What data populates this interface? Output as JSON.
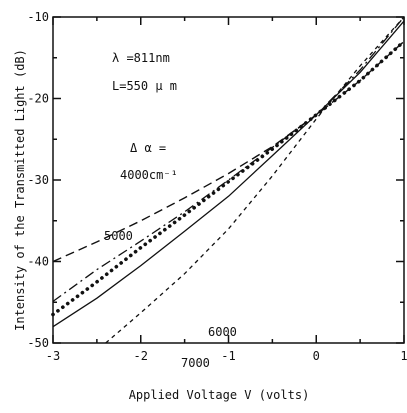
{
  "chart_data": {
    "type": "line",
    "xlabel": "Applied Voltage  V (volts)",
    "ylabel": "Intensity of the Transmitted Light  (dB)",
    "xlim": [
      -3,
      1
    ],
    "ylim": [
      -50,
      -10
    ],
    "xticks": [
      -3,
      -2,
      -1,
      0,
      1
    ],
    "xtick_labels": [
      "-3",
      "-2",
      "-1",
      "0",
      "1"
    ],
    "yticks": [
      -50,
      -40,
      -30,
      -20,
      -10
    ],
    "ytick_labels": [
      "-50",
      "-40",
      "-30",
      "-20",
      "-10"
    ],
    "grid": false,
    "legend": "none",
    "annotations": {
      "lambda": "λ =811nm",
      "length": "L=550 μ m",
      "delta_alpha": "Δ α =",
      "delta_alpha_value": "4000cm⁻¹"
    },
    "series": [
      {
        "name": "5000",
        "style": "dashed",
        "x": [
          -3,
          -2.5,
          -2,
          -1.5,
          -1,
          -0.5,
          0,
          0.5,
          1
        ],
        "y": [
          -40.0,
          -37.6,
          -35.0,
          -32.2,
          -29.2,
          -25.9,
          -22.0,
          -17.8,
          -13.0
        ]
      },
      {
        "name": "4000cm⁻¹",
        "style": "dotted-bold",
        "x": [
          -3,
          -2.5,
          -2,
          -1.5,
          -1,
          -0.5,
          0,
          0.5,
          1
        ],
        "y": [
          -46.5,
          -42.5,
          -38.3,
          -34.3,
          -30.2,
          -26.2,
          -22.0,
          -17.8,
          -13.0
        ]
      },
      {
        "name": "",
        "style": "dash-dot",
        "x": [
          -3,
          -2.5,
          -2,
          -1.5,
          -1,
          -0.5,
          0,
          0.5,
          1
        ],
        "y": [
          -44.9,
          -41.0,
          -37.5,
          -33.9,
          -30.0,
          -26.0,
          -22.0,
          -16.5,
          -10.0
        ]
      },
      {
        "name": "6000",
        "style": "solid",
        "x": [
          -3,
          -2.5,
          -2,
          -1.5,
          -1,
          -0.5,
          0,
          0.5,
          1
        ],
        "y": [
          -48.0,
          -44.5,
          -40.5,
          -36.3,
          -32.0,
          -27.0,
          -22.0,
          -16.8,
          -10.5
        ]
      },
      {
        "name": "7000",
        "style": "short-dashed",
        "x": [
          -2.4,
          -2,
          -1.5,
          -1,
          -0.5,
          0,
          0.5,
          1
        ],
        "y": [
          -50.0,
          -46.3,
          -41.5,
          -36.0,
          -29.5,
          -22.5,
          -16.0,
          -10.0
        ]
      }
    ]
  }
}
